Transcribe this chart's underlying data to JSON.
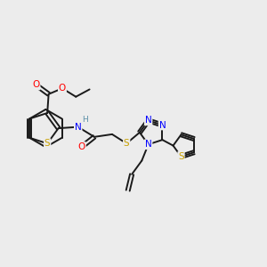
{
  "bg_color": "#ececec",
  "bond_color": "#1a1a1a",
  "atom_colors": {
    "S": "#c8a000",
    "O": "#ff0000",
    "N": "#0000ff",
    "H": "#5b8fa8",
    "C": "#1a1a1a"
  },
  "font_size_atom": 7.5,
  "line_width": 1.4
}
